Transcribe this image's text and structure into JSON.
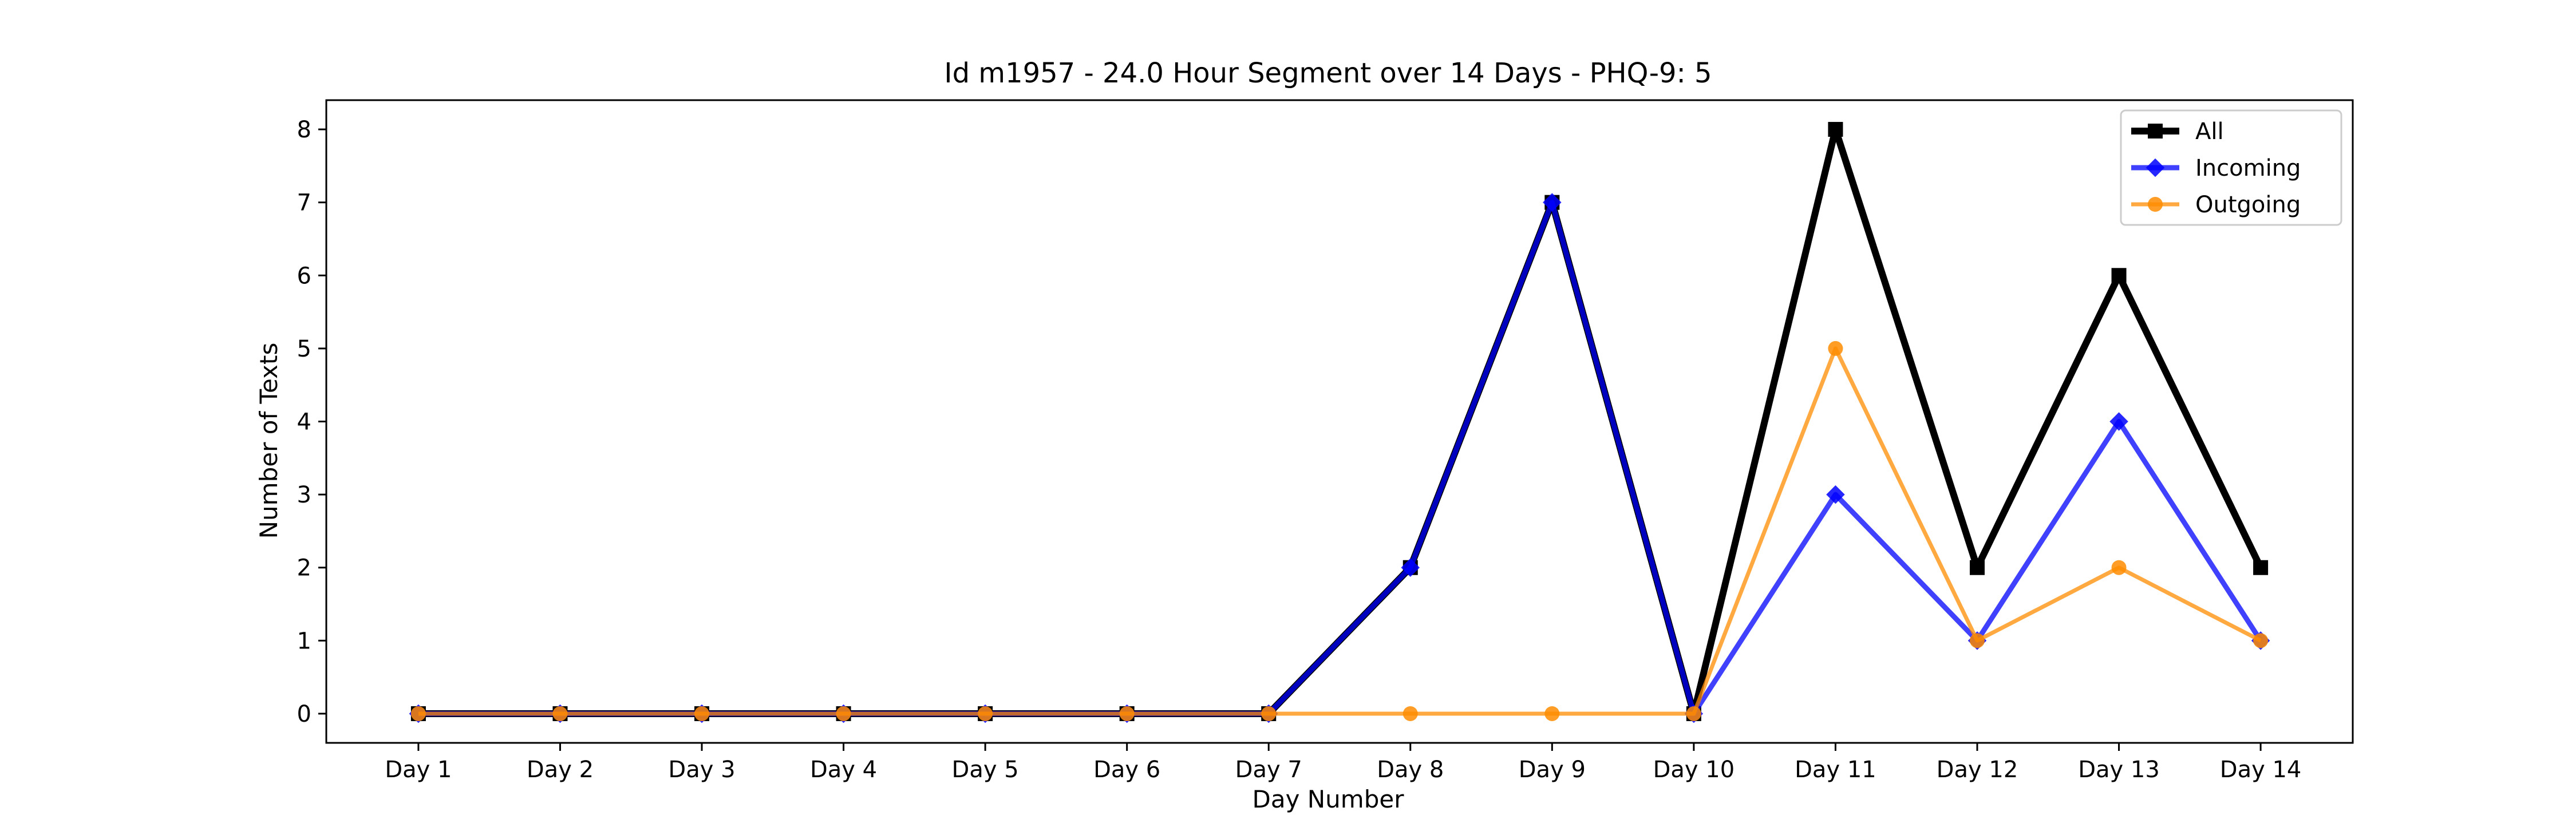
{
  "chart_data": {
    "type": "line",
    "title": "Id m1957 - 24.0 Hour Segment over 14 Days - PHQ-9: 5",
    "xlabel": "Day Number",
    "ylabel": "Number of Texts",
    "categories": [
      "Day 1",
      "Day 2",
      "Day 3",
      "Day 4",
      "Day 5",
      "Day 6",
      "Day 7",
      "Day 8",
      "Day 9",
      "Day 10",
      "Day 11",
      "Day 12",
      "Day 13",
      "Day 14"
    ],
    "ylim": [
      -0.4,
      8.4
    ],
    "yticks": [
      0,
      1,
      2,
      3,
      4,
      5,
      6,
      7,
      8
    ],
    "grid": false,
    "legend_position": "top-right",
    "series": [
      {
        "name": "All",
        "color": "#000000",
        "marker": "square",
        "values": [
          0,
          0,
          0,
          0,
          0,
          0,
          0,
          2,
          7,
          0,
          8,
          2,
          6,
          2
        ]
      },
      {
        "name": "Incoming",
        "color": "#0000ff",
        "marker": "diamond",
        "values": [
          0,
          0,
          0,
          0,
          0,
          0,
          0,
          2,
          7,
          0,
          3,
          1,
          4,
          1
        ]
      },
      {
        "name": "Outgoing",
        "color": "#ff8c00",
        "marker": "circle",
        "values": [
          0,
          0,
          0,
          0,
          0,
          0,
          0,
          0,
          0,
          0,
          5,
          1,
          2,
          1
        ]
      }
    ]
  }
}
